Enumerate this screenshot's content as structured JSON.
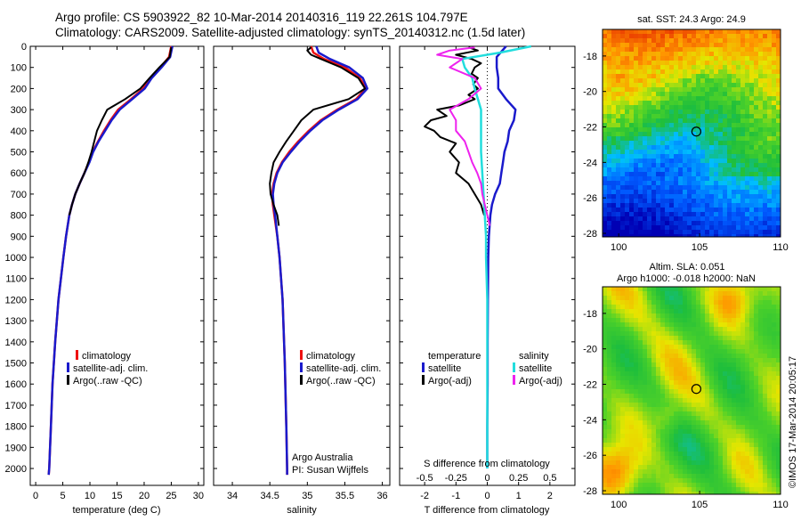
{
  "title": {
    "line1": "Argo profile: CS 5903922_82 10-Mar-2014 20140316_119 22.261S 104.797E",
    "line2": "Climatology: CARS2009. Satellite-adjusted climatology: synTS_20140312.nc (1.5d later)"
  },
  "sst_panel": {
    "title": "sat. SST: 24.3 Argo: 24.9",
    "y_ticks": [
      "-18",
      "-20",
      "-22",
      "-24",
      "-26",
      "-28"
    ],
    "x_ticks": [
      "100",
      "105",
      "110"
    ],
    "xlim": [
      99,
      110
    ],
    "ylim": [
      -28.2,
      -16.5
    ],
    "marker": {
      "lon": 104.797,
      "lat": -22.261
    }
  },
  "sla_panel": {
    "title1": "Altim. SLA: 0.051",
    "title2": "Argo h1000: -0.018 h2000: NaN",
    "y_ticks": [
      "-18",
      "-20",
      "-22",
      "-24",
      "-26",
      "-28"
    ],
    "x_ticks": [
      "100",
      "105",
      "110"
    ],
    "xlim": [
      99,
      110
    ],
    "ylim": [
      -28.2,
      -16.5
    ],
    "marker": {
      "lon": 104.797,
      "lat": -22.261
    }
  },
  "footer": {
    "argo": "Argo Australia",
    "pi": "PI: Susan Wijffels",
    "imos": "©IMOS 17-Mar-2014 20:05:17"
  },
  "colors": {
    "red": "#ee1111",
    "blue": "#1a1acc",
    "black": "#000000",
    "cyan": "#22dddd",
    "magenta": "#ee22ee"
  },
  "chart_data": [
    {
      "type": "line",
      "name": "temperature",
      "xlabel": "temperature (deg C)",
      "ylabel": "",
      "xlim": [
        -1,
        31
      ],
      "ylim": [
        2080,
        0
      ],
      "x_ticks": [
        0,
        5,
        10,
        15,
        20,
        25,
        30
      ],
      "y_ticks": [
        0,
        100,
        200,
        300,
        400,
        500,
        600,
        700,
        800,
        900,
        1000,
        1100,
        1200,
        1300,
        1400,
        1500,
        1600,
        1700,
        1800,
        1900,
        2000
      ],
      "legend": [
        "climatology",
        "satellite-adj. clim.",
        "Argo(..raw -QC)"
      ],
      "series": [
        {
          "name": "climatology",
          "color": "red",
          "depth": [
            0,
            50,
            100,
            150,
            200,
            250,
            300,
            350,
            400,
            450,
            500,
            550,
            600,
            650,
            700,
            750,
            800,
            900,
            1000,
            1200,
            1400,
            1600,
            1800,
            2000,
            2030
          ],
          "values": [
            25,
            24.6,
            23,
            21.2,
            19.8,
            17.6,
            15.2,
            13.8,
            12.6,
            11.5,
            10.5,
            9.8,
            9.0,
            8.1,
            7.3,
            6.7,
            6.2,
            5.6,
            5.1,
            4.2,
            3.6,
            3.1,
            2.8,
            2.5,
            2.4
          ]
        },
        {
          "name": "satellite-adj. clim.",
          "color": "blue",
          "depth": [
            0,
            50,
            100,
            150,
            200,
            250,
            300,
            350,
            400,
            450,
            500,
            550,
            600,
            650,
            700,
            750,
            800,
            900,
            1000,
            1200,
            1400,
            1600,
            1800,
            2000,
            2030
          ],
          "values": [
            25.2,
            24.8,
            23.2,
            21.4,
            20.1,
            17.8,
            15.5,
            14.0,
            12.8,
            11.6,
            10.6,
            9.9,
            9.0,
            8.1,
            7.3,
            6.7,
            6.2,
            5.6,
            5.1,
            4.2,
            3.6,
            3.1,
            2.8,
            2.5,
            2.4
          ]
        },
        {
          "name": "Argo(..raw -QC)",
          "color": "black",
          "depth": [
            5,
            20,
            50,
            100,
            150,
            200,
            250,
            300,
            350,
            400,
            450,
            500,
            550,
            600,
            650,
            700,
            750,
            800
          ],
          "values": [
            25.0,
            24.9,
            24.7,
            22.8,
            21.0,
            19.3,
            16.5,
            13.2,
            12.2,
            11.3,
            10.8,
            10.3,
            9.7,
            9.0,
            8.1,
            7.3,
            6.7,
            6.2
          ]
        }
      ]
    },
    {
      "type": "line",
      "name": "salinity",
      "xlabel": "salinity",
      "xlim": [
        33.75,
        36.1
      ],
      "ylim": [
        2080,
        0
      ],
      "x_ticks": [
        34,
        34.5,
        35,
        35.5,
        36
      ],
      "legend": [
        "climatology",
        "satellite-adj. clim.",
        "Argo(..raw -QC)"
      ],
      "series": [
        {
          "name": "climatology",
          "color": "red",
          "depth": [
            0,
            30,
            60,
            100,
            150,
            200,
            250,
            300,
            350,
            400,
            450,
            500,
            550,
            600,
            650,
            700,
            750,
            800,
            900,
            1000,
            1200,
            1500,
            1800,
            2000,
            2030
          ],
          "values": [
            35.05,
            35.08,
            35.22,
            35.5,
            35.7,
            35.78,
            35.65,
            35.4,
            35.18,
            35.02,
            34.88,
            34.76,
            34.66,
            34.59,
            34.55,
            34.53,
            34.54,
            34.56,
            34.6,
            34.63,
            34.67,
            34.7,
            34.72,
            34.73,
            34.73
          ]
        },
        {
          "name": "satellite-adj. clim.",
          "color": "blue",
          "depth": [
            0,
            30,
            60,
            100,
            150,
            200,
            250,
            300,
            350,
            400,
            450,
            500,
            550,
            600,
            650,
            700,
            750,
            800,
            900,
            1000,
            1200,
            1500,
            1800,
            2000,
            2030
          ],
          "values": [
            35.12,
            35.15,
            35.3,
            35.56,
            35.74,
            35.8,
            35.67,
            35.42,
            35.2,
            35.04,
            34.9,
            34.78,
            34.67,
            34.6,
            34.56,
            34.54,
            34.55,
            34.57,
            34.6,
            34.63,
            34.67,
            34.7,
            34.72,
            34.73,
            34.73
          ]
        },
        {
          "name": "Argo(..raw -QC)",
          "color": "black",
          "depth": [
            5,
            20,
            40,
            60,
            100,
            150,
            200,
            250,
            300,
            350,
            400,
            450,
            500,
            550,
            600,
            650,
            700,
            750,
            800,
            850
          ],
          "values": [
            35.05,
            35.0,
            35.05,
            35.18,
            35.45,
            35.68,
            35.77,
            35.55,
            35.08,
            34.92,
            34.82,
            34.72,
            34.63,
            34.55,
            34.52,
            34.5,
            34.51,
            34.55,
            34.6,
            34.62
          ]
        }
      ]
    },
    {
      "type": "line",
      "name": "differences",
      "xlabel": "T difference from climatology",
      "xlabel_top": "S difference from climatology",
      "xlim": [
        -2.8,
        2.8
      ],
      "ylim": [
        2080,
        0
      ],
      "x_ticks": [
        -2,
        -1,
        0,
        1,
        2
      ],
      "s_ticks": [
        -0.5,
        -0.25,
        0,
        0.25,
        0.5
      ],
      "legend_groups": [
        "temperature",
        "salinity"
      ],
      "legend": [
        "satellite",
        "Argo(-adj)",
        "satellite",
        "Argo(-adj)"
      ],
      "series": [
        {
          "name": "T satellite",
          "color": "blue",
          "depth": [
            0,
            50,
            100,
            150,
            200,
            250,
            300,
            350,
            400,
            450,
            500,
            550,
            600,
            650,
            700,
            750,
            800,
            900,
            1000,
            1200,
            1400,
            1600,
            1800,
            2000
          ],
          "values": [
            0.6,
            0.3,
            0.3,
            0.35,
            0.35,
            0.6,
            0.9,
            0.85,
            0.7,
            0.65,
            0.55,
            0.5,
            0.45,
            0.4,
            0.25,
            0.15,
            0.1,
            0.05,
            0.03,
            0.02,
            0.01,
            0.01,
            0.0,
            0.0
          ]
        },
        {
          "name": "T Argo(-adj)",
          "color": "black",
          "depth": [
            5,
            20,
            40,
            60,
            80,
            100,
            130,
            150,
            180,
            200,
            230,
            250,
            280,
            300,
            330,
            350,
            380,
            400,
            430,
            460,
            500,
            550,
            600,
            650,
            700,
            750,
            800
          ],
          "values": [
            -0.6,
            -0.3,
            -1.0,
            -0.5,
            -0.2,
            -0.4,
            -0.5,
            -0.3,
            -0.45,
            -0.3,
            -0.6,
            -0.4,
            -0.9,
            -1.6,
            -1.3,
            -1.8,
            -2.0,
            -1.7,
            -1.5,
            -1.0,
            -1.2,
            -0.9,
            -1.0,
            -0.6,
            -0.4,
            -0.2,
            -0.1
          ]
        },
        {
          "name": "S satellite",
          "color": "cyan",
          "depth": [
            0,
            30,
            60,
            100,
            150,
            200,
            300,
            400,
            500,
            600,
            700,
            800,
            900,
            1000,
            1200,
            1400,
            1600,
            1800,
            2000
          ],
          "values": [
            0.35,
            0.1,
            -0.2,
            -0.18,
            -0.12,
            -0.1,
            -0.05,
            -0.05,
            -0.05,
            -0.04,
            -0.03,
            -0.02,
            -0.01,
            -0.01,
            0.0,
            0.0,
            0.0,
            0.0,
            0.0
          ]
        },
        {
          "name": "S Argo(-adj)",
          "color": "magenta",
          "depth": [
            5,
            20,
            40,
            60,
            100,
            150,
            200,
            250,
            300,
            350,
            400,
            450,
            500,
            550,
            600,
            650,
            700,
            750,
            800,
            850
          ],
          "values": [
            -0.1,
            -0.3,
            -0.4,
            -0.2,
            -0.3,
            -0.1,
            -0.05,
            -0.15,
            -0.3,
            -0.25,
            -0.25,
            -0.18,
            -0.15,
            -0.12,
            -0.08,
            -0.05,
            -0.04,
            -0.02,
            0.0,
            0.02
          ]
        }
      ]
    }
  ]
}
